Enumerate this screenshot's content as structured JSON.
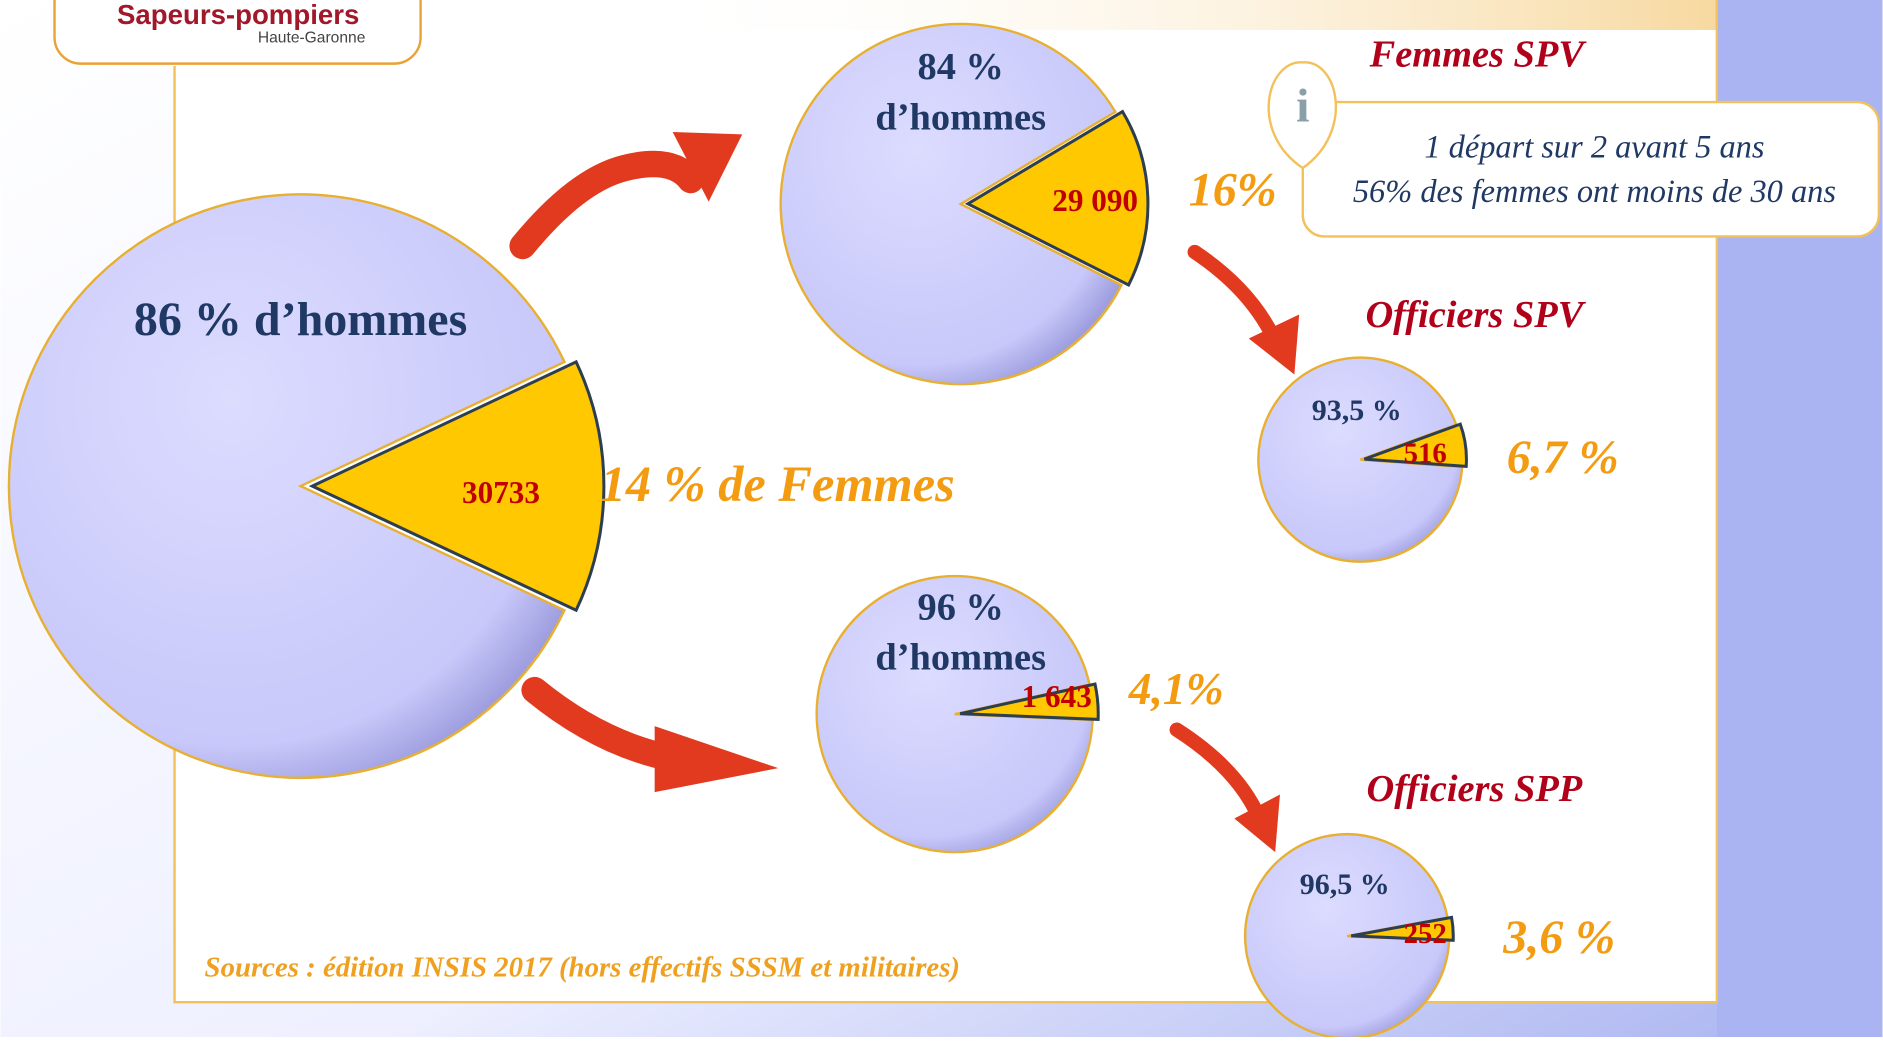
{
  "logo": {
    "name": "Sapeurs-pompiers",
    "region": "Haute-Garonne"
  },
  "info": {
    "lines": [
      "1 départ sur 2 avant 5 ans",
      "56% des femmes ont moins de 30 ans"
    ]
  },
  "source": "Sources : édition INSIS 2017  (hors effectifs SSSM et militaires)",
  "chart_data": [
    {
      "type": "pie",
      "values": [
        86,
        14
      ],
      "value_labels": [
        "86 % d’hommes",
        "14 % de Femmes"
      ],
      "count": {
        "value": 30733,
        "label": "30733"
      },
      "colors": [
        "#ccccff",
        "#ffc800"
      ]
    },
    {
      "type": "pie",
      "title": "Femmes SPV",
      "values": [
        84,
        16
      ],
      "value_labels": [
        "84 % d’hommes",
        "16%"
      ],
      "count": {
        "value": 29090,
        "label": "29 090"
      },
      "colors": [
        "#ccccff",
        "#ffc800"
      ]
    },
    {
      "type": "pie",
      "values": [
        96,
        4.1
      ],
      "value_labels": [
        "96 % d’hommes",
        "4,1%"
      ],
      "count": {
        "value": 1643,
        "label": "1 643"
      },
      "colors": [
        "#ccccff",
        "#ffc800"
      ]
    },
    {
      "type": "pie",
      "title": "Officiers SPV",
      "values": [
        93.5,
        6.7
      ],
      "value_labels": [
        "93,5 %",
        "6,7 %"
      ],
      "count": {
        "value": 516,
        "label": "516"
      },
      "colors": [
        "#ccccff",
        "#ffc800"
      ]
    },
    {
      "type": "pie",
      "title": "Officiers SPP",
      "values": [
        96.5,
        3.6
      ],
      "value_labels": [
        "96,5 %",
        "3,6 %"
      ],
      "count": {
        "value": 252,
        "label": "252"
      },
      "colors": [
        "#ccccff",
        "#ffc800"
      ]
    }
  ]
}
